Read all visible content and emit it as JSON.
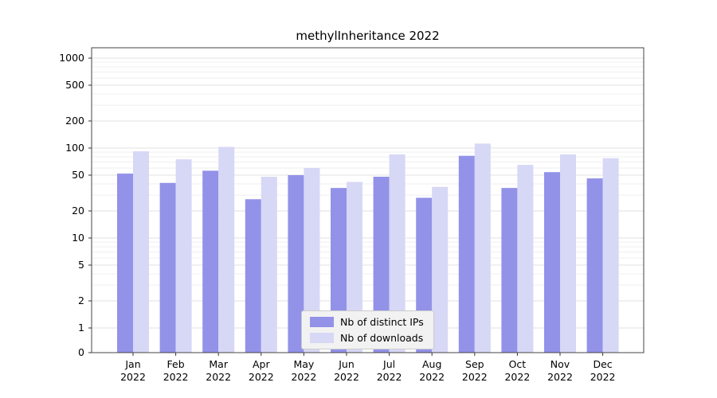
{
  "chart_data": {
    "type": "bar",
    "title": "methylInheritance 2022",
    "categories": [
      "Jan 2022",
      "Feb 2022",
      "Mar 2022",
      "Apr 2022",
      "May 2022",
      "Jun 2022",
      "Jul 2022",
      "Aug 2022",
      "Sep 2022",
      "Oct 2022",
      "Nov 2022",
      "Dec 2022"
    ],
    "series": [
      {
        "name": "Nb of distinct IPs",
        "color": "#9292e8",
        "values": [
          52,
          41,
          56,
          27,
          50,
          36,
          48,
          28,
          82,
          36,
          54,
          46
        ]
      },
      {
        "name": "Nb of downloads",
        "color": "#d7d7f6",
        "values": [
          92,
          75,
          103,
          48,
          60,
          42,
          85,
          37,
          112,
          65,
          85,
          77
        ]
      }
    ],
    "yscale": "symlog",
    "y_ticks": [
      0,
      1,
      2,
      5,
      10,
      20,
      50,
      100,
      200,
      500,
      1000
    ],
    "ylim": [
      0,
      1000
    ],
    "xlabel": "",
    "ylabel": "",
    "grid": true,
    "legend_position": "bottom-center"
  }
}
